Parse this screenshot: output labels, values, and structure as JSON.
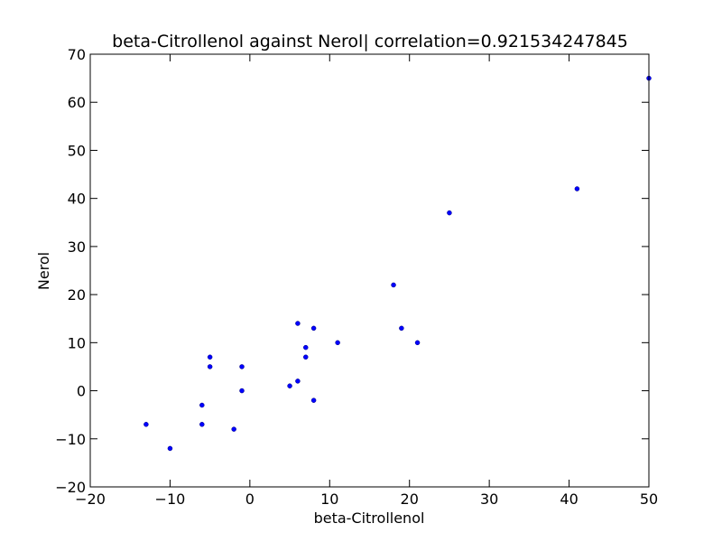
{
  "chart_data": {
    "type": "scatter",
    "title": "beta-Citrollenol against Nerol| correlation=0.921534247845",
    "xlabel": "beta-Citrollenol",
    "ylabel": "Nerol",
    "xlim": [
      -20,
      50
    ],
    "ylim": [
      -20,
      70
    ],
    "xticks": [
      -20,
      -10,
      0,
      10,
      20,
      30,
      40,
      50
    ],
    "yticks": [
      -20,
      -10,
      0,
      10,
      20,
      30,
      40,
      50,
      60,
      70
    ],
    "grid": false,
    "legend": "none",
    "marker_color": "#0000ff",
    "points": [
      {
        "x": -13,
        "y": -7
      },
      {
        "x": -10,
        "y": -12
      },
      {
        "x": -6,
        "y": -3
      },
      {
        "x": -6,
        "y": -7
      },
      {
        "x": -5,
        "y": 7
      },
      {
        "x": -5,
        "y": 5
      },
      {
        "x": -2,
        "y": -8
      },
      {
        "x": -1,
        "y": 5
      },
      {
        "x": -1,
        "y": 0
      },
      {
        "x": 5,
        "y": 1
      },
      {
        "x": 6,
        "y": 14
      },
      {
        "x": 6,
        "y": 2
      },
      {
        "x": 7,
        "y": 9
      },
      {
        "x": 7,
        "y": 7
      },
      {
        "x": 8,
        "y": 13
      },
      {
        "x": 8,
        "y": -2
      },
      {
        "x": 11,
        "y": 10
      },
      {
        "x": 18,
        "y": 22
      },
      {
        "x": 19,
        "y": 13
      },
      {
        "x": 21,
        "y": 10
      },
      {
        "x": 25,
        "y": 37
      },
      {
        "x": 41,
        "y": 42
      },
      {
        "x": 50,
        "y": 65
      }
    ]
  }
}
